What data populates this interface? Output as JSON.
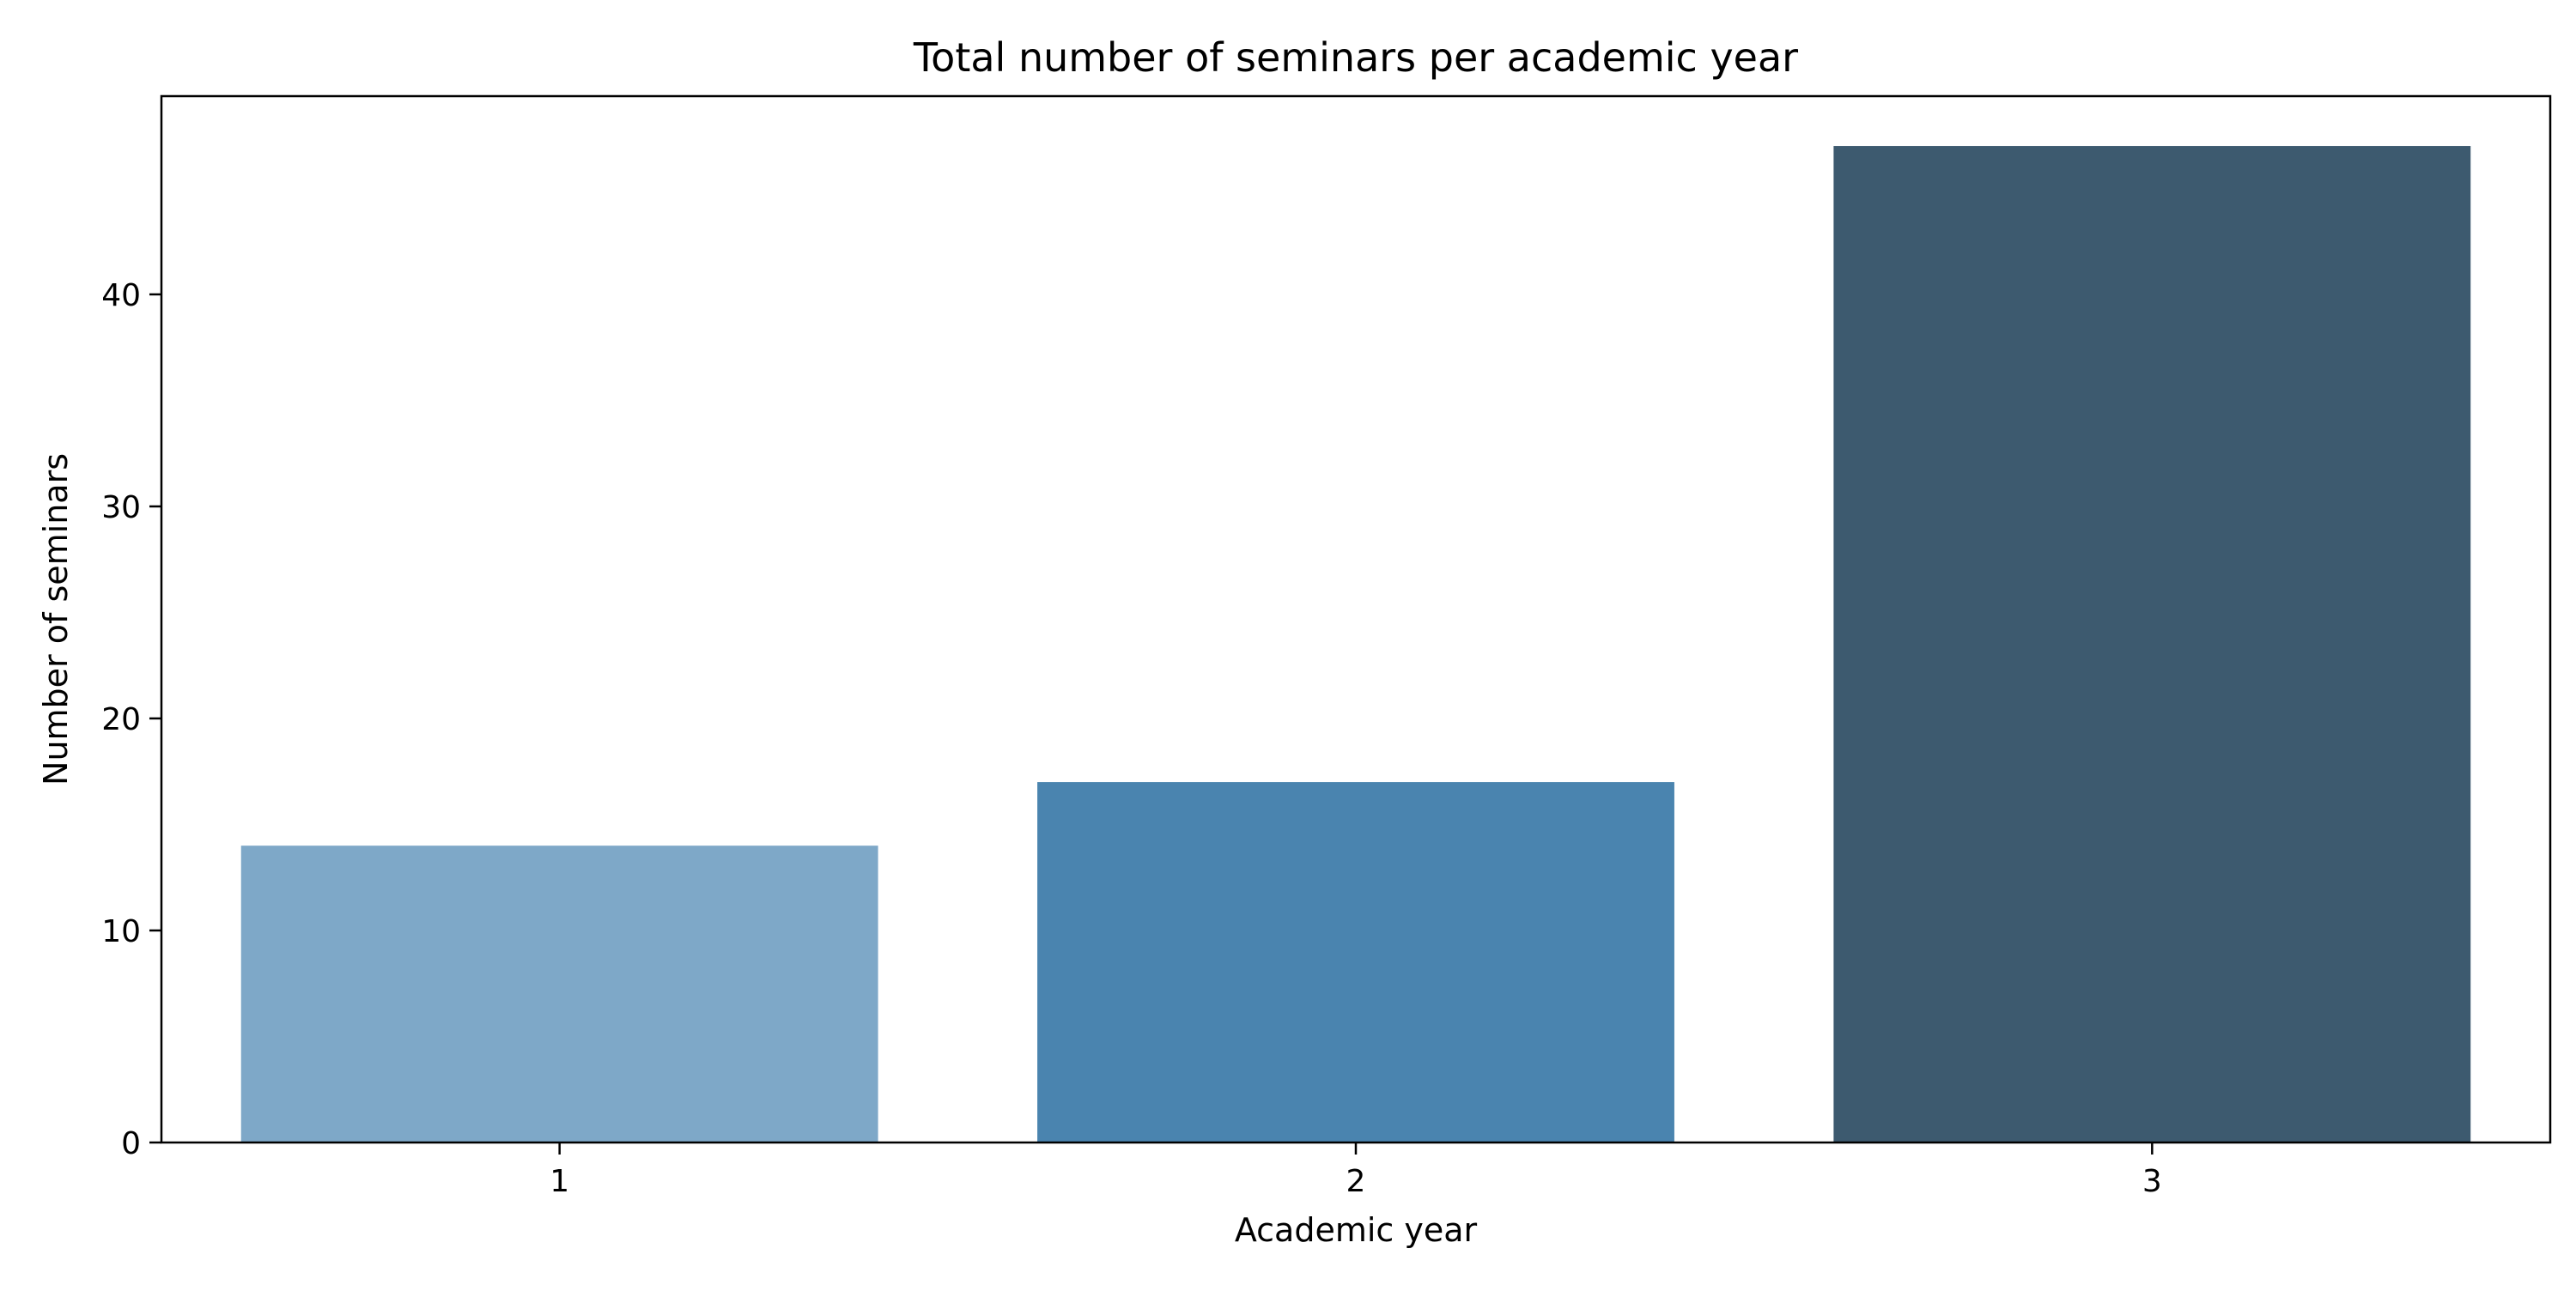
{
  "chart_data": {
    "type": "bar",
    "title": "Total number of seminars per academic year",
    "xlabel": "Academic year",
    "ylabel": "Number of seminars",
    "categories": [
      "1",
      "2",
      "3"
    ],
    "values": [
      14,
      17,
      47
    ],
    "ylim": [
      0,
      49.35
    ],
    "yticks": [
      0,
      10,
      20,
      30,
      40
    ],
    "colors": [
      "#7ea8c8",
      "#4a84af",
      "#3d5a6f"
    ],
    "grid": false,
    "legend": "none"
  }
}
